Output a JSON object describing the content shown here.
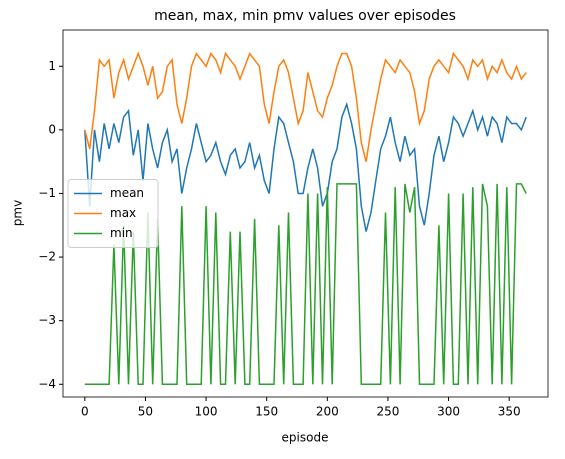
{
  "chart_data": {
    "type": "line",
    "title": "mean, max, min pmv values over episodes",
    "xlabel": "episode",
    "ylabel": "pmv",
    "x": [
      0,
      4,
      8,
      12,
      16,
      20,
      24,
      28,
      32,
      36,
      40,
      44,
      48,
      52,
      56,
      60,
      64,
      68,
      72,
      76,
      80,
      84,
      88,
      92,
      96,
      100,
      104,
      108,
      112,
      116,
      120,
      124,
      128,
      132,
      136,
      140,
      144,
      148,
      152,
      156,
      160,
      164,
      168,
      172,
      176,
      180,
      184,
      188,
      192,
      196,
      200,
      204,
      208,
      212,
      216,
      220,
      224,
      228,
      232,
      236,
      240,
      244,
      248,
      252,
      256,
      260,
      264,
      268,
      272,
      276,
      280,
      284,
      288,
      292,
      296,
      300,
      304,
      308,
      312,
      316,
      320,
      324,
      328,
      332,
      336,
      340,
      344,
      348,
      352,
      356,
      360,
      364
    ],
    "series": [
      {
        "name": "mean",
        "color": "#1f77b4",
        "values": [
          0,
          -1.2,
          0,
          -0.5,
          0.1,
          -0.3,
          0.1,
          -0.2,
          0.2,
          0.3,
          -0.4,
          0,
          -0.8,
          0.1,
          -0.3,
          -0.6,
          -0.2,
          0,
          -0.5,
          -0.3,
          -1.0,
          -0.6,
          -0.3,
          0.1,
          -0.2,
          -0.5,
          -0.4,
          -0.2,
          -0.5,
          -0.7,
          -0.4,
          -0.3,
          -0.6,
          -0.5,
          -0.2,
          -0.6,
          -0.4,
          -0.8,
          -1.0,
          -0.3,
          0.2,
          0.1,
          -0.2,
          -0.5,
          -1.0,
          -1.0,
          -0.6,
          -0.3,
          -0.6,
          -1.2,
          -1.0,
          -0.5,
          -0.3,
          0.2,
          0.4,
          0.1,
          -0.3,
          -1.2,
          -1.6,
          -1.3,
          -0.8,
          -0.3,
          -0.1,
          0.2,
          -0.2,
          -0.5,
          -0.1,
          -0.4,
          -0.3,
          -1.2,
          -1.5,
          -1.0,
          -0.4,
          -0.1,
          -0.5,
          -0.2,
          0.2,
          0.1,
          -0.1,
          0.1,
          0.3,
          0,
          0.2,
          -0.1,
          0.2,
          0.1,
          -0.2,
          0.2,
          0.1,
          0.1,
          0,
          0.2
        ]
      },
      {
        "name": "max",
        "color": "#ff7f0e",
        "values": [
          0,
          -0.3,
          0.3,
          1.1,
          1.0,
          1.1,
          0.5,
          0.9,
          1.1,
          0.8,
          1.0,
          1.2,
          1.0,
          0.7,
          1.0,
          0.5,
          0.6,
          1.0,
          1.1,
          0.4,
          0.1,
          0.5,
          1.0,
          1.2,
          1.1,
          1.0,
          1.2,
          1.1,
          0.9,
          1.2,
          1.1,
          1.0,
          0.8,
          1.0,
          1.2,
          1.1,
          1.0,
          0.4,
          0.1,
          0.6,
          1.0,
          1.1,
          0.9,
          0.5,
          0.1,
          0.3,
          0.9,
          0.6,
          0.3,
          0.2,
          0.5,
          0.7,
          1.0,
          1.2,
          1.2,
          1.0,
          0.5,
          -0.2,
          -0.5,
          0,
          0.4,
          0.8,
          1.1,
          1.0,
          0.9,
          1.1,
          1.0,
          0.9,
          0.6,
          0.1,
          0.3,
          0.8,
          1.0,
          1.1,
          1.0,
          0.9,
          1.2,
          1.1,
          1.0,
          0.8,
          1.1,
          1.0,
          1.1,
          0.8,
          1.0,
          0.9,
          1.1,
          0.9,
          0.8,
          1.0,
          0.8,
          0.9
        ]
      },
      {
        "name": "min",
        "color": "#2ca02c",
        "values": [
          -4,
          -4,
          -4,
          -4,
          -4,
          -4,
          -1.8,
          -4,
          -1.5,
          -4,
          -1.6,
          -4,
          -4,
          -1.3,
          -4,
          -1.4,
          -4,
          -4,
          -4,
          -4,
          -1.2,
          -4,
          -4,
          -4,
          -4,
          -1.2,
          -4,
          -1.3,
          -4,
          -4,
          -1.6,
          -4,
          -1.6,
          -4,
          -4,
          -1.4,
          -4,
          -4,
          -4,
          -4,
          -1.5,
          -4,
          -1.3,
          -4,
          -4,
          -4,
          -1.0,
          -4,
          -1.0,
          -4,
          -0.9,
          -4,
          -0.85,
          -0.85,
          -0.85,
          -0.85,
          -0.85,
          -4,
          -4,
          -4,
          -4,
          -4,
          -1.3,
          -4,
          -0.9,
          -4,
          -0.85,
          -1.3,
          -0.9,
          -4,
          -4,
          -4,
          -4,
          -1.5,
          -4,
          -1.0,
          -4,
          -4,
          -1.0,
          -4,
          -0.9,
          -4,
          -0.85,
          -1.2,
          -4,
          -0.85,
          -4,
          -0.9,
          -4,
          -0.85,
          -0.85,
          -1.0
        ]
      }
    ],
    "xlim": [
      -18,
      382
    ],
    "xticks": [
      0,
      50,
      100,
      150,
      200,
      250,
      300,
      350
    ],
    "ylim": [
      -4.2,
      1.57
    ],
    "yticks": [
      {
        "value": -4,
        "label": "−4"
      },
      {
        "value": -3,
        "label": "−3"
      },
      {
        "value": -2,
        "label": "−2"
      },
      {
        "value": -1,
        "label": "−1"
      },
      0,
      1
    ],
    "legend": "center left"
  }
}
